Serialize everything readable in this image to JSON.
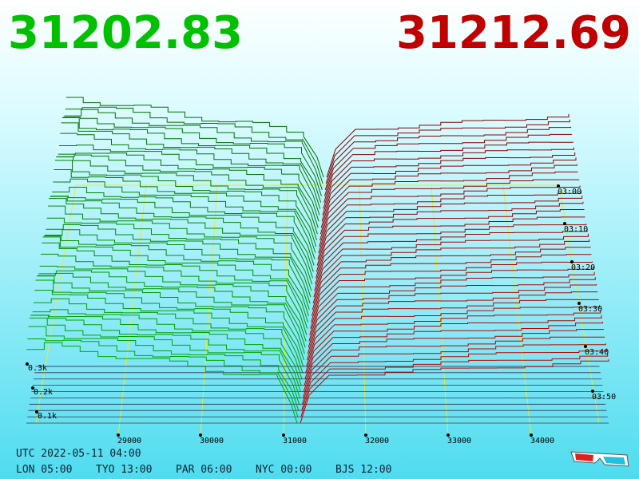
{
  "header": {
    "bid": "31202.83",
    "ask": "31212.69"
  },
  "x_axis": {
    "labels": [
      "29000",
      "30000",
      "31000",
      "32000",
      "33000",
      "34000"
    ]
  },
  "depth_axis": {
    "labels": [
      "0.3k",
      "0.2k",
      "0.1k"
    ]
  },
  "time_axis": {
    "labels": [
      "03:00",
      "03:10",
      "03:20",
      "03:30",
      "03:40",
      "03:50"
    ]
  },
  "footer": {
    "utc": "UTC 2022-05-11 04:00",
    "clocks": [
      "LON 05:00",
      "TYO 13:00",
      "PAR 06:00",
      "NYC 00:00",
      "BJS 12:00"
    ]
  }
}
